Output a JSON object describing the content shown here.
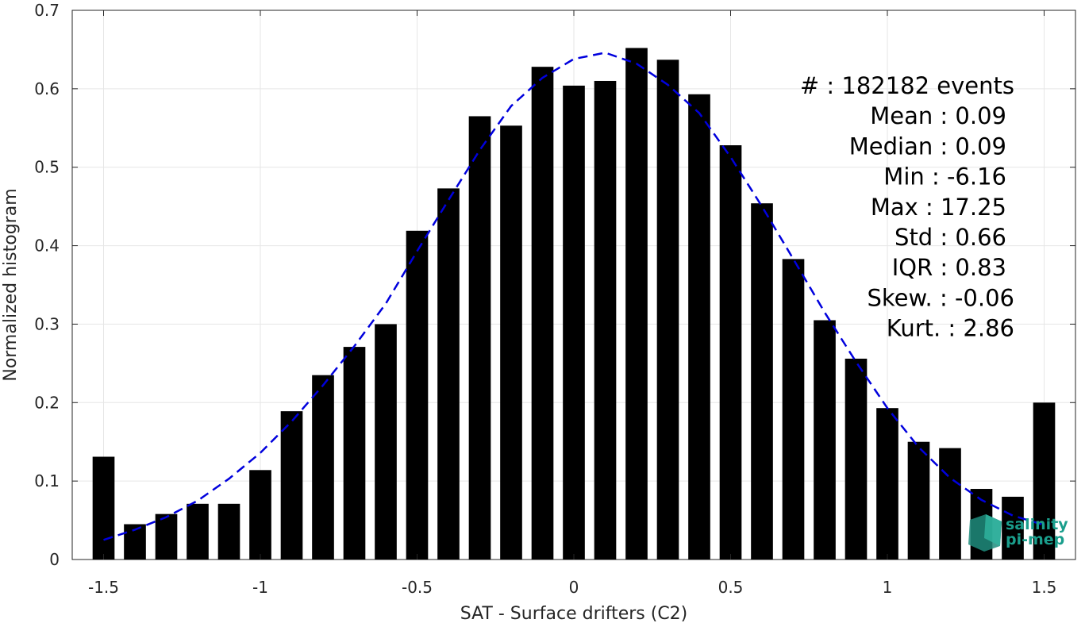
{
  "chart_data": {
    "type": "bar",
    "xlabel": "SAT - Surface drifters (C2)",
    "ylabel": "Normalized histogram",
    "xlim": [
      -1.6,
      1.6
    ],
    "ylim": [
      0,
      0.7
    ],
    "xticks": [
      -1.5,
      -1,
      -0.5,
      0,
      0.5,
      1,
      1.5
    ],
    "xtick_labels": [
      "-1.5",
      "-1",
      "-0.5",
      "0",
      "0.5",
      "1",
      "1.5"
    ],
    "yticks": [
      0,
      0.1,
      0.2,
      0.3,
      0.4,
      0.5,
      0.6,
      0.7
    ],
    "ytick_labels": [
      "0",
      "0.1",
      "0.2",
      "0.3",
      "0.4",
      "0.5",
      "0.6",
      "0.7"
    ],
    "grid": true,
    "bar_color": "#000000",
    "bar_width": 0.07,
    "bins": [
      {
        "x": -1.5,
        "y": 0.131
      },
      {
        "x": -1.4,
        "y": 0.045
      },
      {
        "x": -1.3,
        "y": 0.058
      },
      {
        "x": -1.2,
        "y": 0.071
      },
      {
        "x": -1.1,
        "y": 0.071
      },
      {
        "x": -1.0,
        "y": 0.114
      },
      {
        "x": -0.9,
        "y": 0.189
      },
      {
        "x": -0.8,
        "y": 0.235
      },
      {
        "x": -0.7,
        "y": 0.271
      },
      {
        "x": -0.6,
        "y": 0.3
      },
      {
        "x": -0.5,
        "y": 0.419
      },
      {
        "x": -0.4,
        "y": 0.473
      },
      {
        "x": -0.3,
        "y": 0.565
      },
      {
        "x": -0.2,
        "y": 0.553
      },
      {
        "x": -0.1,
        "y": 0.628
      },
      {
        "x": 0.0,
        "y": 0.604
      },
      {
        "x": 0.1,
        "y": 0.61
      },
      {
        "x": 0.2,
        "y": 0.652
      },
      {
        "x": 0.3,
        "y": 0.637
      },
      {
        "x": 0.4,
        "y": 0.593
      },
      {
        "x": 0.5,
        "y": 0.528
      },
      {
        "x": 0.6,
        "y": 0.454
      },
      {
        "x": 0.7,
        "y": 0.383
      },
      {
        "x": 0.8,
        "y": 0.305
      },
      {
        "x": 0.9,
        "y": 0.256
      },
      {
        "x": 1.0,
        "y": 0.193
      },
      {
        "x": 1.1,
        "y": 0.15
      },
      {
        "x": 1.2,
        "y": 0.142
      },
      {
        "x": 1.3,
        "y": 0.09
      },
      {
        "x": 1.4,
        "y": 0.08
      },
      {
        "x": 1.5,
        "y": 0.2
      }
    ],
    "fit_curve": {
      "type": "gaussian",
      "color": "#0000dd",
      "style": "dashed",
      "x": [
        -1.5,
        -1.4,
        -1.3,
        -1.2,
        -1.1,
        -1.0,
        -0.9,
        -0.8,
        -0.7,
        -0.6,
        -0.5,
        -0.4,
        -0.3,
        -0.2,
        -0.1,
        0.0,
        0.1,
        0.2,
        0.3,
        0.4,
        0.5,
        0.6,
        0.7,
        0.8,
        0.9,
        1.0,
        1.1,
        1.2,
        1.3,
        1.4,
        1.5
      ],
      "y": [
        0.025,
        0.038,
        0.054,
        0.075,
        0.103,
        0.136,
        0.176,
        0.222,
        0.272,
        0.326,
        0.393,
        0.458,
        0.522,
        0.578,
        0.614,
        0.638,
        0.646,
        0.632,
        0.605,
        0.569,
        0.513,
        0.45,
        0.383,
        0.315,
        0.252,
        0.193,
        0.143,
        0.104,
        0.076,
        0.056,
        0.044
      ]
    },
    "annotations": [
      {
        "label": "#  : 182182 events"
      },
      {
        "label": "Mean : 0.09"
      },
      {
        "label": "Median : 0.09"
      },
      {
        "label": "Min : -6.16"
      },
      {
        "label": "Max : 17.25"
      },
      {
        "label": "Std : 0.66"
      },
      {
        "label": "IQR : 0.83"
      },
      {
        "label": "Skew. : -0.06"
      },
      {
        "label": "Kurt. : 2.86"
      }
    ],
    "watermark": {
      "line1": "salinity",
      "line2": "pi-mep"
    }
  }
}
